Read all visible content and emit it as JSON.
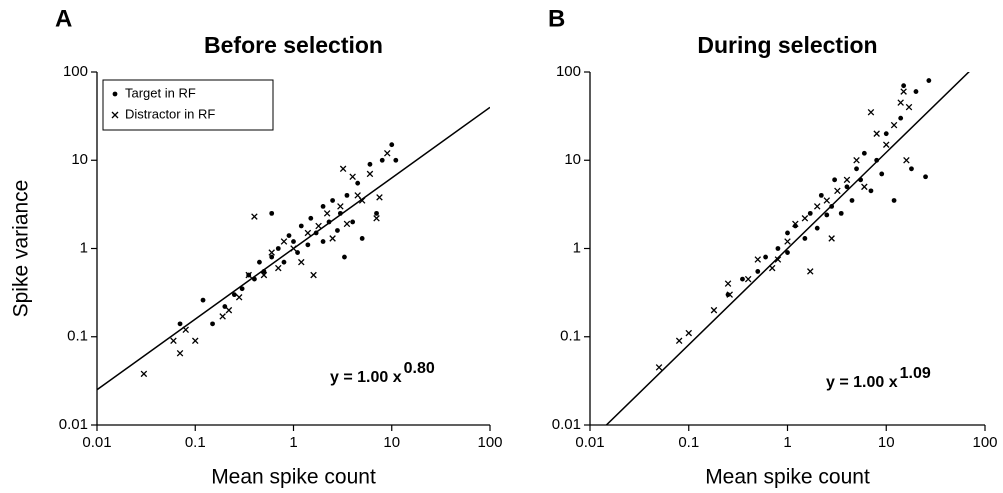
{
  "chart_data": [
    {
      "type": "scatter",
      "panel": "A",
      "title": "Before selection",
      "xlabel": "Mean spike count",
      "ylabel": "Spike variance",
      "xscale": "log",
      "yscale": "log",
      "xlim": [
        0.01,
        100
      ],
      "ylim": [
        0.01,
        100
      ],
      "xticks": [
        0.01,
        0.1,
        1,
        10,
        100
      ],
      "yticks": [
        0.01,
        0.1,
        1,
        10,
        100
      ],
      "legend": "upper left",
      "annotation": "y = 1.00 x",
      "annotation_exponent": "0.80",
      "fit_line": {
        "x": [
          0.01,
          100
        ],
        "y": [
          0.0251,
          39.8
        ]
      },
      "series": [
        {
          "name": "Target in RF",
          "marker": "dot",
          "color": "#000000",
          "x": [
            0.07,
            0.12,
            0.15,
            0.2,
            0.25,
            0.3,
            0.35,
            0.4,
            0.45,
            0.5,
            0.6,
            0.6,
            0.7,
            0.8,
            0.9,
            1.0,
            1.1,
            1.2,
            1.4,
            1.5,
            1.7,
            2.0,
            2.0,
            2.3,
            2.5,
            2.8,
            3.0,
            3.3,
            3.5,
            4.0,
            4.5,
            5.0,
            6.0,
            7.0,
            8.0,
            10,
            11
          ],
          "y": [
            0.14,
            0.26,
            0.14,
            0.22,
            0.3,
            0.35,
            0.5,
            0.45,
            0.7,
            0.55,
            2.5,
            0.8,
            1.0,
            0.7,
            1.4,
            1.2,
            0.9,
            1.8,
            1.1,
            2.2,
            1.5,
            3.0,
            1.2,
            2.0,
            3.5,
            1.6,
            2.5,
            0.8,
            4.0,
            2.0,
            5.5,
            1.3,
            9.0,
            2.5,
            10.0,
            15,
            10
          ]
        },
        {
          "name": "Distractor in RF",
          "marker": "x",
          "color": "#000000",
          "x": [
            0.03,
            0.06,
            0.07,
            0.08,
            0.1,
            0.19,
            0.22,
            0.28,
            0.35,
            0.4,
            0.5,
            0.6,
            0.7,
            0.8,
            1.0,
            1.2,
            1.4,
            1.6,
            1.8,
            2.2,
            2.5,
            3.0,
            3.2,
            3.5,
            4.0,
            4.5,
            5.0,
            6.0,
            7.0,
            7.5,
            9.0
          ],
          "y": [
            0.038,
            0.09,
            0.065,
            0.12,
            0.09,
            0.17,
            0.2,
            0.28,
            0.5,
            2.3,
            0.5,
            0.9,
            0.6,
            1.2,
            1.0,
            0.7,
            1.5,
            0.5,
            1.8,
            2.5,
            1.3,
            3.0,
            8,
            1.9,
            6.5,
            4.0,
            3.5,
            7.0,
            2.2,
            3.8,
            12
          ]
        }
      ]
    },
    {
      "type": "scatter",
      "panel": "B",
      "title": "During selection",
      "xlabel": "Mean spike count",
      "xscale": "log",
      "yscale": "log",
      "xlim": [
        0.01,
        100
      ],
      "ylim": [
        0.01,
        100
      ],
      "xticks": [
        0.01,
        0.1,
        1,
        10,
        100
      ],
      "yticks": [
        0.01,
        0.1,
        1,
        10,
        100
      ],
      "annotation": "y = 1.00 x",
      "annotation_exponent": "1.09",
      "fit_line": {
        "x": [
          0.01,
          100
        ],
        "y": [
          0.00659,
          151
        ]
      },
      "series": [
        {
          "marker": "dot",
          "color": "#000000",
          "x": [
            0.25,
            0.35,
            0.5,
            0.6,
            0.8,
            1.0,
            1.0,
            1.2,
            1.5,
            1.7,
            2.0,
            2.2,
            2.5,
            2.8,
            3.0,
            3.5,
            4.0,
            4.5,
            5.0,
            5.5,
            6.0,
            7.0,
            8.0,
            9.0,
            10,
            12,
            14,
            15,
            18,
            20,
            25,
            27
          ],
          "y": [
            0.3,
            0.45,
            0.55,
            0.8,
            1.0,
            1.5,
            0.9,
            1.8,
            1.3,
            2.5,
            1.7,
            4.0,
            2.4,
            3.0,
            6.0,
            2.5,
            5.0,
            3.5,
            8.0,
            6.0,
            12,
            4.5,
            10,
            7.0,
            20,
            3.5,
            30,
            70,
            8,
            60,
            6.5,
            80
          ]
        },
        {
          "marker": "x",
          "color": "#000000",
          "x": [
            0.05,
            0.08,
            0.1,
            0.18,
            0.25,
            0.26,
            0.4,
            0.5,
            0.7,
            0.8,
            1.0,
            1.2,
            1.5,
            1.7,
            2.0,
            2.5,
            2.8,
            3.2,
            4.0,
            5.0,
            6.0,
            7.0,
            8,
            10,
            12,
            14,
            15,
            16,
            17
          ],
          "y": [
            0.045,
            0.09,
            0.11,
            0.2,
            0.4,
            0.3,
            0.45,
            0.75,
            0.6,
            0.75,
            1.2,
            1.9,
            2.2,
            0.55,
            3.0,
            3.5,
            1.3,
            4.5,
            6.0,
            10,
            5,
            35,
            20,
            15,
            25,
            45,
            60,
            10,
            40
          ]
        }
      ]
    }
  ]
}
